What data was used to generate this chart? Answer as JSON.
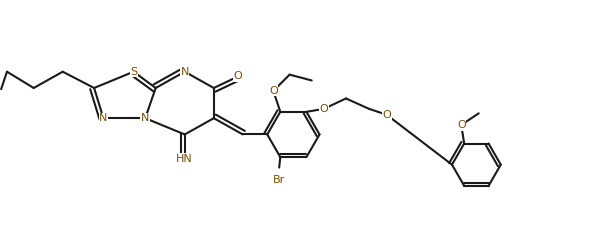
{
  "bg": "#ffffff",
  "bc": "#1a1a1a",
  "lc": "#7a5000",
  "lw": 1.5,
  "fs": 8.0,
  "figsize": [
    6.1,
    2.48
  ],
  "dpi": 100,
  "xlim": [
    0,
    10.5
  ],
  "ylim": [
    0,
    4.0
  ]
}
